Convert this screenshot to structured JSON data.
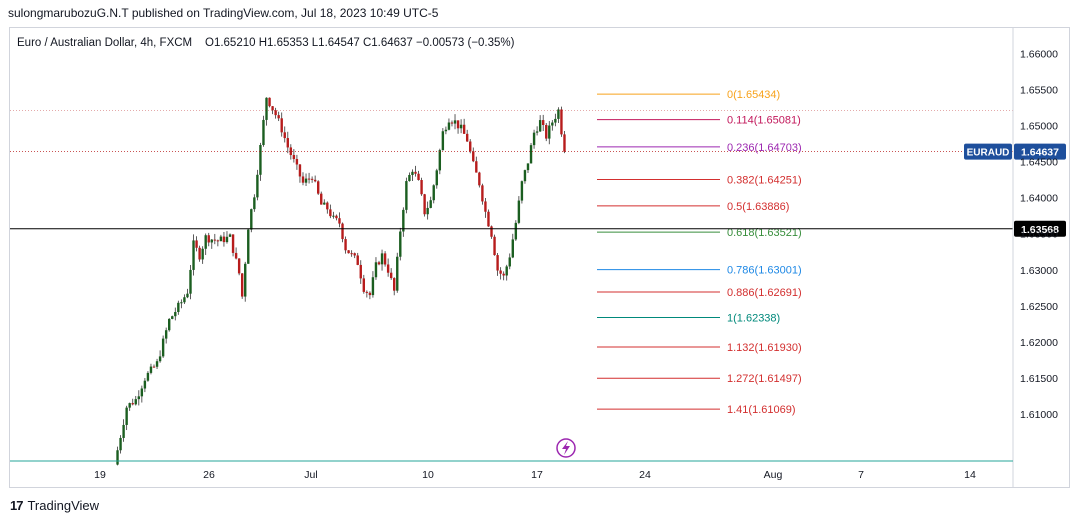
{
  "header": {
    "published": "sulongmarubozuG.N.T published on TradingView.com, Jul 18, 2023 10:49 UTC-5"
  },
  "chart_data": {
    "type": "candlestick",
    "title": "Euro / Australian Dollar, 4h, FXCM",
    "ohlc_text": "O1.65210  H1.65353  L1.64547  C1.64637  −0.00573 (−0.35%)",
    "symbol": "EURAUD",
    "last_price": "1.64637",
    "level_price": "1.63568",
    "y_ticks": [
      "1.66000",
      "1.65500",
      "1.65000",
      "1.64500",
      "1.64000",
      "1.63500",
      "1.63000",
      "1.62500",
      "1.62000",
      "1.61500",
      "1.61000"
    ],
    "ylim": [
      1.6035,
      1.6635
    ],
    "x_ticks": [
      "19",
      "26",
      "Jul",
      "10",
      "17",
      "24",
      "Aug",
      "7",
      "14"
    ],
    "fib_levels": [
      {
        "label": "0(1.65434)",
        "value": 1.65434,
        "color": "#f7a21b"
      },
      {
        "label": "0.114(1.65081)",
        "value": 1.65081,
        "color": "#c2185b"
      },
      {
        "label": "0.236(1.64703)",
        "value": 1.64703,
        "color": "#9c27b0"
      },
      {
        "label": "0.382(1.64251)",
        "value": 1.64251,
        "color": "#d32f2f"
      },
      {
        "label": "0.5(1.63886)",
        "value": 1.63886,
        "color": "#d32f2f"
      },
      {
        "label": "0.618(1.63521)",
        "value": 1.63521,
        "color": "#388e3c"
      },
      {
        "label": "0.786(1.63001)",
        "value": 1.63001,
        "color": "#1e88e5"
      },
      {
        "label": "0.886(1.62691)",
        "value": 1.62691,
        "color": "#d32f2f"
      },
      {
        "label": "1(1.62338)",
        "value": 1.62338,
        "color": "#00897b"
      },
      {
        "label": "1.132(1.61930)",
        "value": 1.6193,
        "color": "#d32f2f"
      },
      {
        "label": "1.272(1.61497)",
        "value": 1.61497,
        "color": "#d32f2f"
      },
      {
        "label": "1.41(1.61069)",
        "value": 1.61069,
        "color": "#d32f2f"
      }
    ],
    "waypoints": [
      [
        0,
        1.603
      ],
      [
        4,
        1.611
      ],
      [
        7,
        1.612
      ],
      [
        10,
        1.615
      ],
      [
        14,
        1.617
      ],
      [
        18,
        1.623
      ],
      [
        22,
        1.6255
      ],
      [
        24,
        1.627
      ],
      [
        26,
        1.6335
      ],
      [
        28,
        1.632
      ],
      [
        30,
        1.6345
      ],
      [
        34,
        1.634
      ],
      [
        38,
        1.6345
      ],
      [
        41,
        1.6295
      ],
      [
        42,
        1.6263
      ],
      [
        44,
        1.636
      ],
      [
        46,
        1.6405
      ],
      [
        48,
        1.647
      ],
      [
        50,
        1.654
      ],
      [
        53,
        1.6515
      ],
      [
        55,
        1.6495
      ],
      [
        57,
        1.647
      ],
      [
        60,
        1.644
      ],
      [
        62,
        1.642
      ],
      [
        65,
        1.643
      ],
      [
        68,
        1.639
      ],
      [
        70,
        1.6385
      ],
      [
        72,
        1.637
      ],
      [
        74,
        1.6365
      ],
      [
        76,
        1.633
      ],
      [
        78,
        1.632
      ],
      [
        80,
        1.631
      ],
      [
        82,
        1.6275
      ],
      [
        84,
        1.6265
      ],
      [
        86,
        1.6305
      ],
      [
        88,
        1.632
      ],
      [
        90,
        1.63
      ],
      [
        92,
        1.627
      ],
      [
        94,
        1.6355
      ],
      [
        96,
        1.642
      ],
      [
        98,
        1.644
      ],
      [
        100,
        1.642
      ],
      [
        102,
        1.638
      ],
      [
        104,
        1.6395
      ],
      [
        106,
        1.644
      ],
      [
        108,
        1.649
      ],
      [
        110,
        1.651
      ],
      [
        112,
        1.6505
      ],
      [
        114,
        1.6495
      ],
      [
        116,
        1.648
      ],
      [
        118,
        1.6445
      ],
      [
        120,
        1.642
      ],
      [
        122,
        1.638
      ],
      [
        124,
        1.635
      ],
      [
        126,
        1.63
      ],
      [
        128,
        1.629
      ],
      [
        130,
        1.632
      ],
      [
        132,
        1.6365
      ],
      [
        134,
        1.642
      ],
      [
        136,
        1.645
      ],
      [
        138,
        1.649
      ],
      [
        140,
        1.6505
      ],
      [
        142,
        1.6485
      ],
      [
        144,
        1.6505
      ],
      [
        146,
        1.6521
      ],
      [
        148,
        1.6464
      ]
    ]
  },
  "footer": {
    "brand": "TradingView"
  }
}
